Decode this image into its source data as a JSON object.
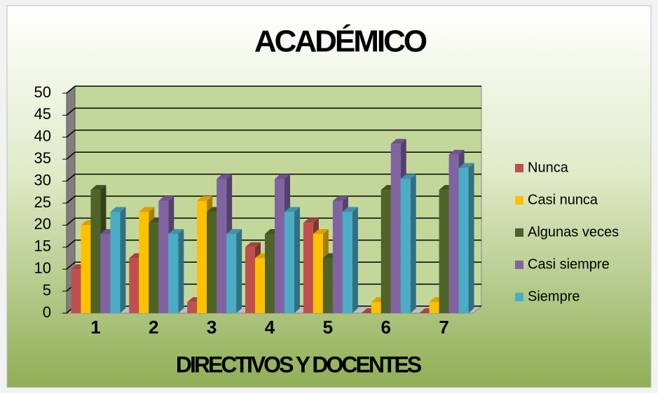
{
  "chart_data": {
    "type": "bar",
    "title": "ACADÉMICO",
    "x_label": "DIRECTIVOS Y DOCENTES",
    "categories": [
      "1",
      "2",
      "3",
      "4",
      "5",
      "6",
      "7"
    ],
    "series": [
      {
        "name": "Nunca",
        "color": "#c0504d",
        "values": [
          10,
          12.5,
          2.5,
          15,
          20.5,
          0,
          0
        ]
      },
      {
        "name": "Casi nunca",
        "color": "#ffc000",
        "values": [
          20,
          23,
          25.5,
          12.5,
          18,
          2.5,
          2.5
        ]
      },
      {
        "name": "Algunas veces",
        "color": "#4f6228",
        "values": [
          28,
          20.5,
          23,
          18,
          12.5,
          28,
          28
        ]
      },
      {
        "name": "Casi siempre",
        "color": "#8064a2",
        "values": [
          18,
          25.5,
          30.5,
          30.5,
          25.5,
          38.5,
          36
        ]
      },
      {
        "name": "Siempre",
        "color": "#4bacc6",
        "values": [
          23,
          18,
          18,
          23,
          23,
          30.5,
          33
        ]
      }
    ],
    "ylim": [
      0,
      50
    ],
    "yticks": [
      0,
      5,
      10,
      15,
      20,
      25,
      30,
      35,
      40,
      45,
      50
    ],
    "grid": true,
    "legend": "right"
  }
}
